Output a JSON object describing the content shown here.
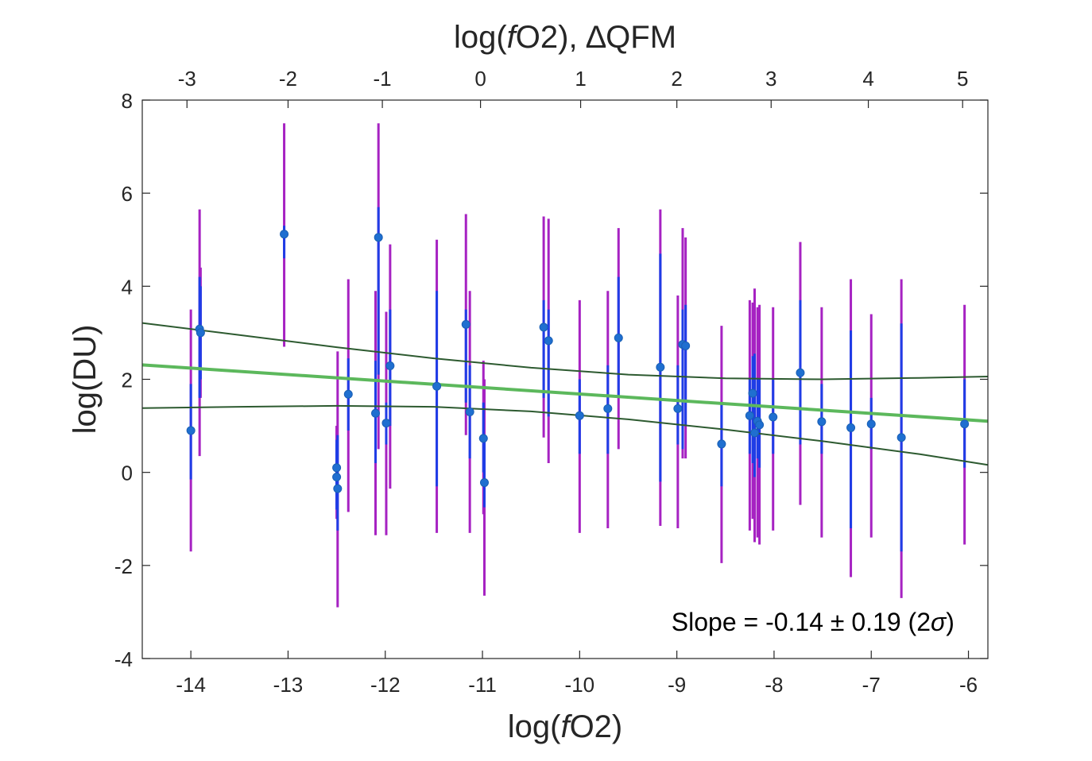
{
  "chart_data": {
    "type": "scatter",
    "x_axis": {
      "label_prefix": "log(",
      "label_italic": "f",
      "label_suffix": "O2)",
      "lim": [
        -14.5,
        -5.8
      ],
      "ticks": [
        -14,
        -13,
        -12,
        -11,
        -10,
        -9,
        -8,
        -7,
        -6
      ],
      "tick_labels": [
        "-14",
        "-13",
        "-12",
        "-11",
        "-10",
        "-9",
        "-8",
        "-7",
        "-6"
      ]
    },
    "top_axis": {
      "label_prefix": "log(",
      "label_italic": "f",
      "label_suffix": "O2), ∆QFM",
      "ticks_in_bottom_units": [
        -14.04,
        -13.0,
        -12.03,
        -11.02,
        -9.99,
        -9.0,
        -8.03,
        -7.03,
        -6.06
      ],
      "tick_labels": [
        "-3",
        "-2",
        "-1",
        "0",
        "1",
        "2",
        "3",
        "4",
        "5"
      ],
      "tick_values": [
        -3,
        -2,
        -1,
        0,
        1,
        2,
        3,
        4,
        5
      ]
    },
    "y_axis": {
      "label": "log(DU)",
      "lim": [
        -4,
        8
      ],
      "ticks": [
        -4,
        -2,
        0,
        2,
        4,
        6,
        8
      ],
      "tick_labels": [
        "-4",
        "-2",
        "0",
        "2",
        "4",
        "6",
        "8"
      ]
    },
    "grid": false,
    "points": [
      {
        "x": -14.0,
        "y": 0.9,
        "err1": [
          -0.15,
          1.9
        ],
        "err2": [
          -1.7,
          3.5
        ]
      },
      {
        "x": -13.91,
        "y": 3.08,
        "err1": [
          1.6,
          4.2
        ],
        "err2": [
          0.35,
          5.65
        ]
      },
      {
        "x": -13.9,
        "y": 3.0,
        "err1": [
          2.0,
          4.0
        ],
        "err2": [
          1.6,
          4.4
        ]
      },
      {
        "x": -13.04,
        "y": 5.12,
        "err1": [
          4.6,
          5.3
        ],
        "err2": [
          2.7,
          7.5
        ]
      },
      {
        "x": -12.5,
        "y": 0.1,
        "err1": [
          -0.5,
          0.6
        ],
        "err2": [
          -0.7,
          1.0
        ]
      },
      {
        "x": -12.5,
        "y": -0.1,
        "err1": [
          -0.8,
          0.7
        ],
        "err2": [
          -1.0,
          1.0
        ]
      },
      {
        "x": -12.49,
        "y": -0.35,
        "err1": [
          -1.25,
          0.8
        ],
        "err2": [
          -2.9,
          2.6
        ]
      },
      {
        "x": -12.38,
        "y": 1.68,
        "err1": [
          0.9,
          2.45
        ],
        "err2": [
          -0.85,
          4.15
        ]
      },
      {
        "x": -12.1,
        "y": 1.27,
        "err1": [
          0.2,
          2.4
        ],
        "err2": [
          -1.35,
          3.9
        ]
      },
      {
        "x": -12.07,
        "y": 5.05,
        "err1": [
          2.1,
          5.7
        ],
        "err2": [
          0.5,
          7.5
        ]
      },
      {
        "x": -11.99,
        "y": 1.06,
        "err1": [
          0.6,
          1.5
        ],
        "err2": [
          -1.35,
          3.45
        ]
      },
      {
        "x": -11.95,
        "y": 2.29,
        "err1": [
          1.0,
          3.5
        ],
        "err2": [
          -0.35,
          4.9
        ]
      },
      {
        "x": -11.47,
        "y": 1.85,
        "err1": [
          -0.3,
          3.9
        ],
        "err2": [
          -1.3,
          5.0
        ]
      },
      {
        "x": -11.17,
        "y": 3.18,
        "err1": [
          1.5,
          3.5
        ],
        "err2": [
          0.8,
          5.55
        ]
      },
      {
        "x": -11.13,
        "y": 1.3,
        "err1": [
          0.3,
          2.3
        ],
        "err2": [
          -1.3,
          3.9
        ]
      },
      {
        "x": -10.99,
        "y": 0.73,
        "err1": [
          0.0,
          1.5
        ],
        "err2": [
          -0.9,
          2.4
        ]
      },
      {
        "x": -10.98,
        "y": -0.22,
        "err1": [
          -0.75,
          0.7
        ],
        "err2": [
          -2.65,
          2.0
        ]
      },
      {
        "x": -10.37,
        "y": 3.12,
        "err1": [
          1.6,
          3.7
        ],
        "err2": [
          0.75,
          5.5
        ]
      },
      {
        "x": -10.32,
        "y": 2.83,
        "err1": [
          1.2,
          3.5
        ],
        "err2": [
          0.2,
          5.45
        ]
      },
      {
        "x": -10.0,
        "y": 1.22,
        "err1": [
          0.4,
          2.0
        ],
        "err2": [
          -1.3,
          3.7
        ]
      },
      {
        "x": -9.71,
        "y": 1.37,
        "err1": [
          0.4,
          2.3
        ],
        "err2": [
          -1.2,
          3.9
        ]
      },
      {
        "x": -9.6,
        "y": 2.89,
        "err1": [
          1.6,
          4.2
        ],
        "err2": [
          0.5,
          5.25
        ]
      },
      {
        "x": -9.17,
        "y": 2.26,
        "err1": [
          -0.2,
          4.7
        ],
        "err2": [
          -1.15,
          5.65
        ]
      },
      {
        "x": -8.99,
        "y": 1.37,
        "err1": [
          0.6,
          2.3
        ],
        "err2": [
          -1.2,
          3.8
        ]
      },
      {
        "x": -8.94,
        "y": 2.75,
        "err1": [
          0.5,
          3.5
        ],
        "err2": [
          0.3,
          5.25
        ]
      },
      {
        "x": -8.91,
        "y": 2.72,
        "err1": [
          1.0,
          3.6
        ],
        "err2": [
          0.3,
          5.05
        ]
      },
      {
        "x": -8.54,
        "y": 0.61,
        "err1": [
          -0.3,
          1.5
        ],
        "err2": [
          -1.95,
          3.15
        ]
      },
      {
        "x": -8.25,
        "y": 1.22,
        "err1": [
          0.4,
          2.0
        ],
        "err2": [
          -1.25,
          3.7
        ]
      },
      {
        "x": -8.22,
        "y": 1.7,
        "err1": [
          0.2,
          2.5
        ],
        "err2": [
          -1.0,
          3.65
        ]
      },
      {
        "x": -8.2,
        "y": 0.85,
        "err1": [
          -0.1,
          2.55
        ],
        "err2": [
          -1.5,
          3.95
        ]
      },
      {
        "x": -8.17,
        "y": 1.1,
        "err1": [
          0.3,
          2.0
        ],
        "err2": [
          -1.4,
          3.55
        ]
      },
      {
        "x": -8.15,
        "y": 1.02,
        "err1": [
          0.1,
          2.0
        ],
        "err2": [
          -1.55,
          3.6
        ]
      },
      {
        "x": -8.01,
        "y": 1.19,
        "err1": [
          0.4,
          2.0
        ],
        "err2": [
          -1.25,
          3.55
        ]
      },
      {
        "x": -7.73,
        "y": 2.14,
        "err1": [
          0.6,
          3.7
        ],
        "err2": [
          -0.7,
          4.95
        ]
      },
      {
        "x": -7.51,
        "y": 1.09,
        "err1": [
          0.4,
          1.9
        ],
        "err2": [
          -1.4,
          3.55
        ]
      },
      {
        "x": -7.21,
        "y": 0.96,
        "err1": [
          -1.2,
          3.05
        ],
        "err2": [
          -2.25,
          4.15
        ]
      },
      {
        "x": -7.0,
        "y": 1.04,
        "err1": [
          0.5,
          1.6
        ],
        "err2": [
          -1.4,
          3.4
        ]
      },
      {
        "x": -6.69,
        "y": 0.75,
        "err1": [
          -1.7,
          3.2
        ],
        "err2": [
          -2.7,
          4.15
        ]
      },
      {
        "x": -6.04,
        "y": 1.04,
        "err1": [
          0.1,
          2.0
        ],
        "err2": [
          -1.55,
          3.6
        ]
      }
    ],
    "fit_line": {
      "x": [
        -14.5,
        -5.8
      ],
      "y": [
        2.31,
        1.1
      ]
    },
    "confidence_band": {
      "upper": {
        "x": [
          -14.5,
          -13.5,
          -12.5,
          -11.5,
          -10.5,
          -9.5,
          -8.5,
          -7.5,
          -6.5,
          -5.8
        ],
        "y": [
          3.21,
          2.95,
          2.69,
          2.45,
          2.25,
          2.1,
          2.02,
          2.0,
          2.03,
          2.06
        ]
      },
      "lower": {
        "x": [
          -14.5,
          -13.5,
          -12.5,
          -11.5,
          -10.5,
          -9.5,
          -8.5,
          -7.5,
          -6.5,
          -5.8
        ],
        "y": [
          1.38,
          1.41,
          1.43,
          1.41,
          1.31,
          1.14,
          0.92,
          0.67,
          0.39,
          0.16
        ]
      }
    },
    "annotation": {
      "prefix": "Slope = -0.14 ± 0.19 (2",
      "greek": "σ",
      "suffix": ")",
      "x": -7.6,
      "y": -3.2
    },
    "colors": {
      "err_outer": "#a622c2",
      "err_inner": "#1f3de6",
      "marker": "#1f6fd0",
      "fit": "#5cb85c",
      "band": "#2d5a30",
      "axis": "#262626"
    }
  }
}
